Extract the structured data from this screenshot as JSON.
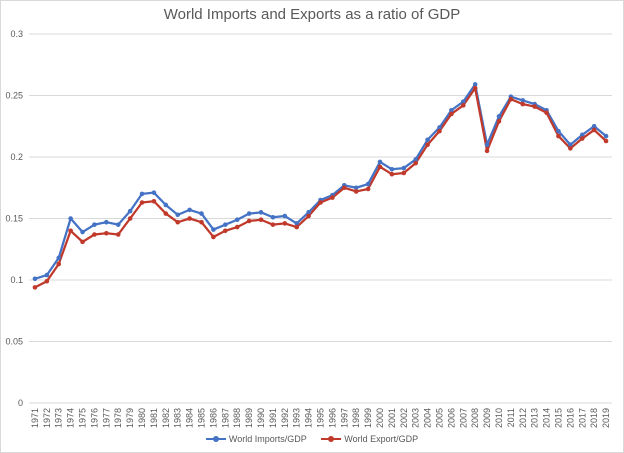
{
  "colors": {
    "imports": "#4472c4",
    "exports": "#c0392b",
    "grid": "#d9d9d9",
    "text": "#595959"
  },
  "chart_data": {
    "type": "line",
    "title": "World Imports and Exports as a ratio of GDP",
    "xlabel": "",
    "ylabel": "",
    "ylim": [
      0,
      0.3
    ],
    "yticks": [
      "0",
      "0.05",
      "0.1",
      "0.15",
      "0.2",
      "0.25",
      "0.3"
    ],
    "ytick_values": [
      0,
      0.05,
      0.1,
      0.15,
      0.2,
      0.25,
      0.3
    ],
    "grid": true,
    "legend": "bottom",
    "categories": [
      "1971",
      "1972",
      "1973",
      "1974",
      "1975",
      "1976",
      "1977",
      "1978",
      "1979",
      "1980",
      "1981",
      "1982",
      "1983",
      "1984",
      "1985",
      "1986",
      "1987",
      "1988",
      "1989",
      "1990",
      "1991",
      "1992",
      "1993",
      "1994",
      "1995",
      "1996",
      "1997",
      "1998",
      "1999",
      "2000",
      "2001",
      "2002",
      "2003",
      "2004",
      "2005",
      "2006",
      "2007",
      "2008",
      "2009",
      "2010",
      "2011",
      "2012",
      "2013",
      "2014",
      "2015",
      "2016",
      "2017",
      "2018",
      "2019"
    ],
    "series": [
      {
        "name": "World Imports/GDP",
        "values": [
          0.101,
          0.104,
          0.118,
          0.15,
          0.139,
          0.145,
          0.147,
          0.145,
          0.156,
          0.17,
          0.171,
          0.161,
          0.153,
          0.157,
          0.154,
          0.141,
          0.145,
          0.149,
          0.154,
          0.155,
          0.151,
          0.152,
          0.146,
          0.155,
          0.165,
          0.169,
          0.177,
          0.175,
          0.178,
          0.196,
          0.19,
          0.191,
          0.198,
          0.214,
          0.224,
          0.238,
          0.245,
          0.259,
          0.21,
          0.233,
          0.249,
          0.246,
          0.243,
          0.238,
          0.221,
          0.21,
          0.218,
          0.225,
          0.217
        ]
      },
      {
        "name": "World Export/GDP",
        "values": [
          0.094,
          0.099,
          0.113,
          0.14,
          0.131,
          0.137,
          0.138,
          0.137,
          0.15,
          0.163,
          0.164,
          0.154,
          0.147,
          0.15,
          0.147,
          0.135,
          0.14,
          0.143,
          0.148,
          0.149,
          0.145,
          0.146,
          0.143,
          0.152,
          0.163,
          0.167,
          0.175,
          0.172,
          0.174,
          0.192,
          0.186,
          0.187,
          0.195,
          0.21,
          0.221,
          0.235,
          0.242,
          0.256,
          0.205,
          0.229,
          0.247,
          0.243,
          0.241,
          0.236,
          0.217,
          0.207,
          0.215,
          0.222,
          0.213
        ]
      }
    ]
  }
}
